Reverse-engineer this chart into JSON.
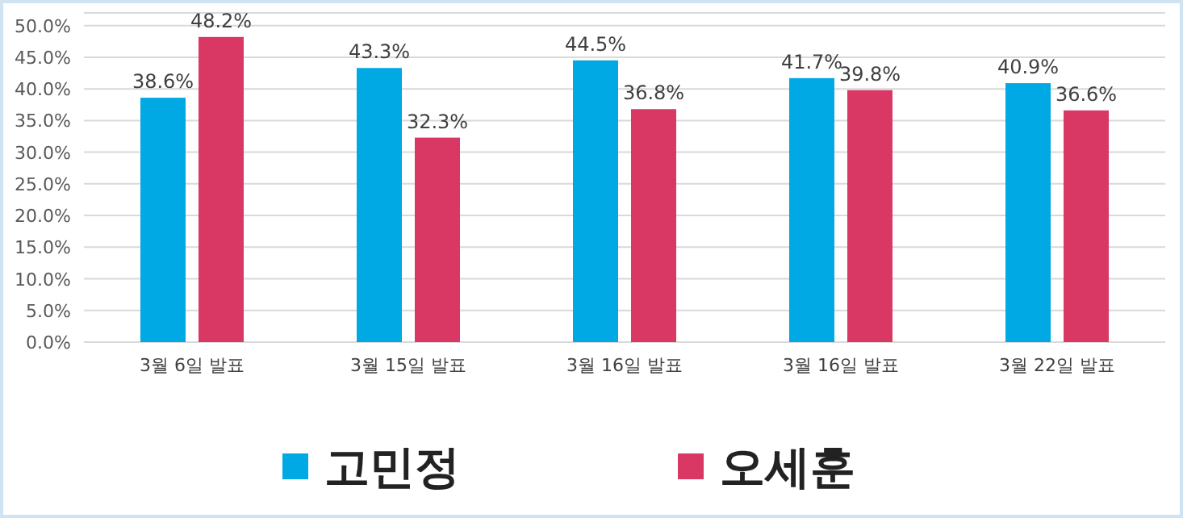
{
  "chart_data": {
    "type": "bar",
    "categories": [
      "3월 6일 발표",
      "3월 15일 발표",
      "3월 16일 발표",
      "3월 16일 발표",
      "3월 22일 발표"
    ],
    "series": [
      {
        "name": "고민정",
        "color": "#00a8e4",
        "values": [
          38.6,
          43.3,
          44.5,
          41.7,
          40.9
        ],
        "value_labels": [
          "38.6%",
          "43.3%",
          "44.5%",
          "41.7%",
          "40.9%"
        ]
      },
      {
        "name": "오세훈",
        "color": "#d93864",
        "values": [
          48.2,
          32.3,
          36.8,
          39.8,
          36.6
        ],
        "value_labels": [
          "48.2%",
          "32.3%",
          "36.8%",
          "39.8%",
          "36.6%"
        ]
      }
    ],
    "ylim": [
      0,
      52
    ],
    "yticks": [
      {
        "value": 0,
        "label": "0.0%"
      },
      {
        "value": 5,
        "label": "5.0%"
      },
      {
        "value": 10,
        "label": "10.0%"
      },
      {
        "value": 15,
        "label": "15.0%"
      },
      {
        "value": 20,
        "label": "20.0%"
      },
      {
        "value": 25,
        "label": "25.0%"
      },
      {
        "value": 30,
        "label": "30.0%"
      },
      {
        "value": 35,
        "label": "35.0%"
      },
      {
        "value": 40,
        "label": "40.0%"
      },
      {
        "value": 45,
        "label": "45.0%"
      },
      {
        "value": 50,
        "label": "50.0%"
      }
    ],
    "grid": "y",
    "legend": "bottom"
  }
}
